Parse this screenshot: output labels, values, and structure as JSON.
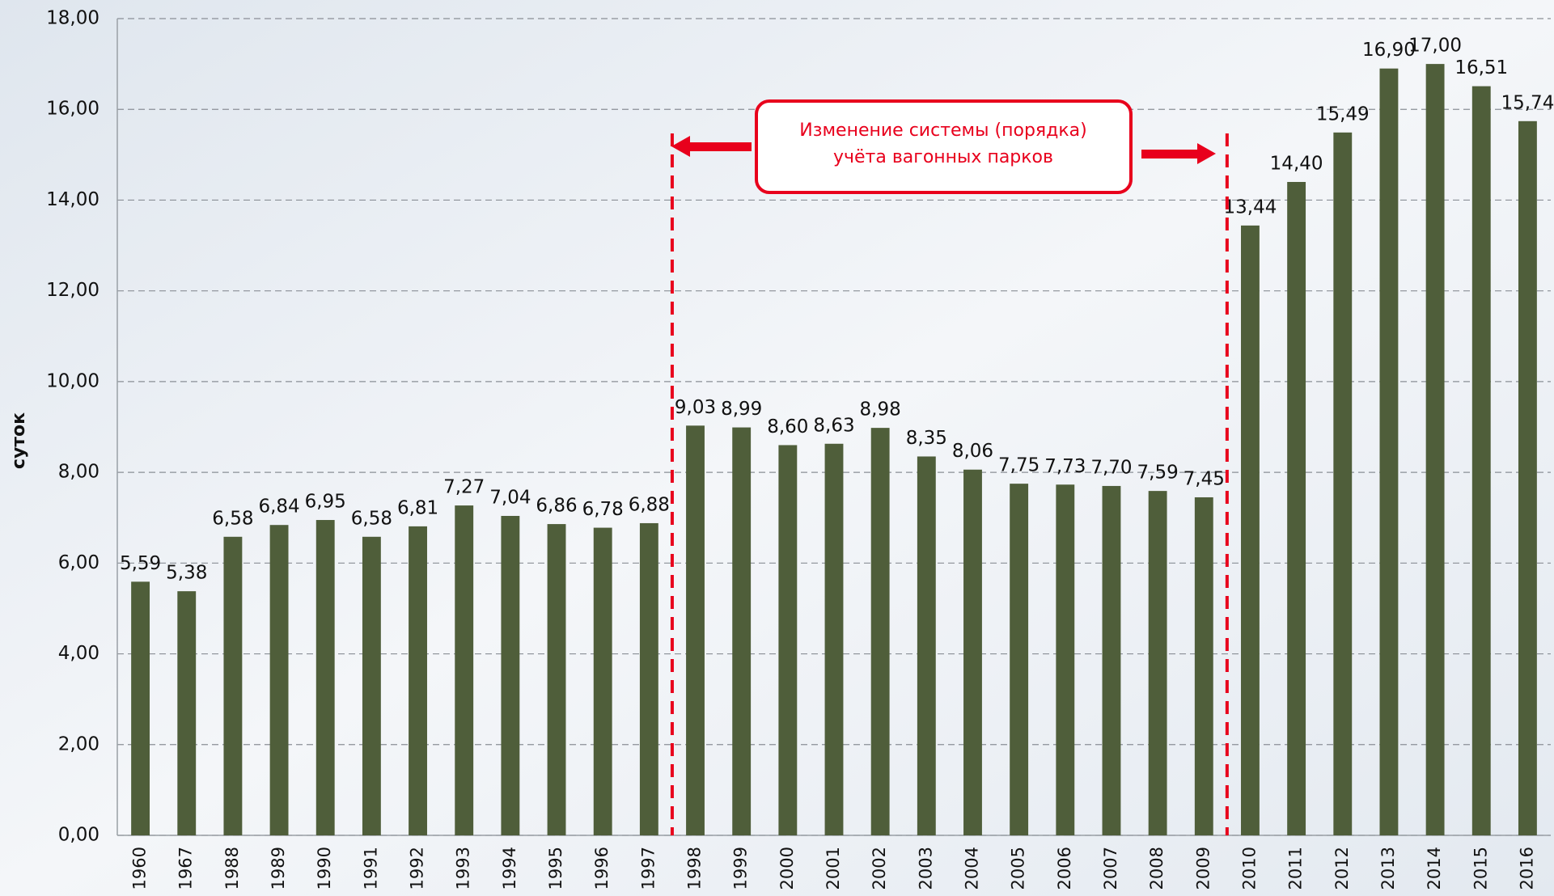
{
  "chart_data": {
    "type": "bar",
    "ylabel": "суток",
    "annotation": [
      "Изменение системы  (порядка)",
      "учёта вагонных парков"
    ],
    "categories": [
      "1960",
      "1967",
      "1988",
      "1989",
      "1990",
      "1991",
      "1992",
      "1993",
      "1994",
      "1995",
      "1996",
      "1997",
      "1998",
      "1999",
      "2000",
      "2001",
      "2002",
      "2003",
      "2004",
      "2005",
      "2006",
      "2007",
      "2008",
      "2009",
      "2010",
      "2011",
      "2012",
      "2013",
      "2014",
      "2015",
      "2016"
    ],
    "values": [
      5.59,
      5.38,
      6.58,
      6.84,
      6.95,
      6.58,
      6.81,
      7.27,
      7.04,
      6.86,
      6.78,
      6.88,
      9.03,
      8.99,
      8.6,
      8.63,
      8.98,
      8.35,
      8.06,
      7.75,
      7.73,
      7.7,
      7.59,
      7.45,
      13.44,
      14.4,
      15.49,
      16.9,
      17.0,
      16.51,
      15.74
    ],
    "value_labels": [
      "5,59",
      "5,38",
      "6,58",
      "6,84",
      "6,95",
      "6,58",
      "6,81",
      "7,27",
      "7,04",
      "6,86",
      "6,78",
      "6,88",
      "9,03",
      "8,99",
      "8,60",
      "8,63",
      "8,98",
      "8,35",
      "8,06",
      "7,75",
      "7,73",
      "7,70",
      "7,59",
      "7,45",
      "13,44",
      "14,40",
      "15,49",
      "16,90",
      "17,00",
      "16,51",
      "15,74"
    ],
    "color": "#4f5e3a",
    "ylim": [
      0,
      18
    ],
    "yticks": [
      {
        "value": 0,
        "label": "0,00"
      },
      {
        "value": 2,
        "label": "2,00"
      },
      {
        "value": 4,
        "label": "4,00"
      },
      {
        "value": 6,
        "label": "6,00"
      },
      {
        "value": 8,
        "label": "8,00"
      },
      {
        "value": 10,
        "label": "10,00"
      },
      {
        "value": 12,
        "label": "12,00"
      },
      {
        "value": 14,
        "label": "14,00"
      },
      {
        "value": 16,
        "label": "16,00"
      },
      {
        "value": 18,
        "label": "18,00"
      }
    ],
    "grid": true
  }
}
